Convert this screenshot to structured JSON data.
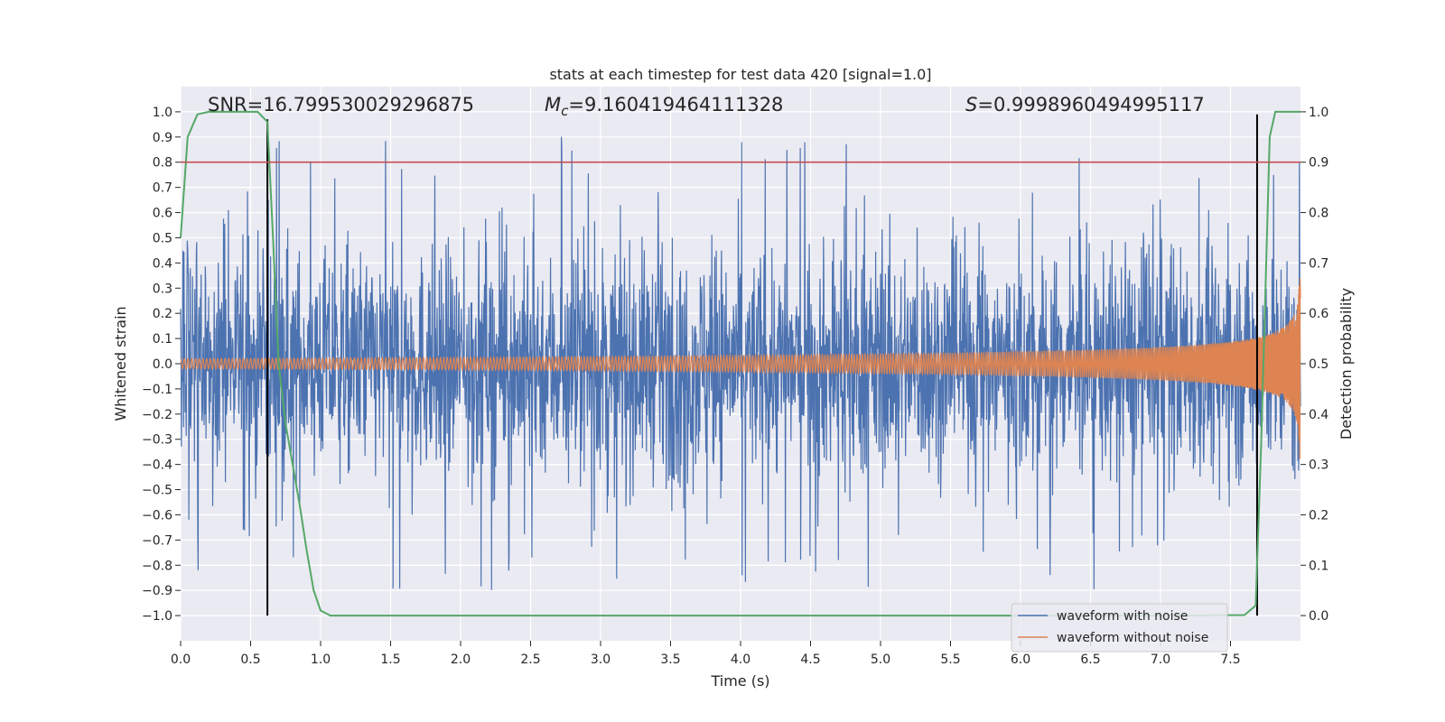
{
  "chart_data": {
    "type": "line",
    "title": "stats at each timestep for test data 420 [signal=1.0]",
    "xlabel": "Time (s)",
    "ylabel": "Whitened strain",
    "ylabel_right": "Detection probability",
    "xlim": [
      0.0,
      8.0
    ],
    "ylim": [
      -1.1,
      1.1
    ],
    "ylim_right": [
      -0.05,
      1.05
    ],
    "x_ticks": [
      "0.0",
      "0.5",
      "1.0",
      "1.5",
      "2.0",
      "2.5",
      "3.0",
      "3.5",
      "4.0",
      "4.5",
      "5.0",
      "5.5",
      "6.0",
      "6.5",
      "7.0",
      "7.5"
    ],
    "y_ticks": [
      "1.0",
      "0.9",
      "0.8",
      "0.7",
      "0.6",
      "0.5",
      "0.4",
      "0.3",
      "0.2",
      "0.1",
      "0.0",
      "−0.1",
      "−0.2",
      "−0.3",
      "−0.4",
      "−0.5",
      "−0.6",
      "−0.7",
      "−0.8",
      "−0.9",
      "−1.0"
    ],
    "y_ticks_right": [
      "1.0",
      "0.9",
      "0.8",
      "0.7",
      "0.6",
      "0.5",
      "0.4",
      "0.3",
      "0.2",
      "0.1",
      "0.0"
    ],
    "annotations": {
      "snr": "SNR=16.799530029296875",
      "mc_symbol": "M",
      "mc_subscript": "c",
      "mc_value": "=9.160419464111328",
      "s_symbol": "S",
      "s_value": "=0.9998960494995117"
    },
    "series": [
      {
        "name": "waveform with noise",
        "color": "#4c72b0",
        "axis": "left",
        "kind": "noise",
        "amplitude_typical": 0.45,
        "peak_max": 0.93
      },
      {
        "name": "waveform without noise",
        "color": "#dd8452",
        "axis": "left",
        "kind": "chirp",
        "start_amplitude": 0.02,
        "end_amplitude": 0.38,
        "merger_time": 8.0
      },
      {
        "name": "detection probability",
        "color": "#55a868",
        "axis": "right",
        "x": [
          0.0,
          0.05,
          0.12,
          0.2,
          0.3,
          0.45,
          0.55,
          0.62,
          0.66,
          0.7,
          0.75,
          0.8,
          0.85,
          0.9,
          0.95,
          1.0,
          1.07,
          1.2,
          2.0,
          3.0,
          4.0,
          5.0,
          6.0,
          7.0,
          7.6,
          7.68,
          7.72,
          7.78,
          7.82,
          7.9,
          8.0
        ],
        "y": [
          0.75,
          0.95,
          0.995,
          1.0,
          1.0,
          1.0,
          1.0,
          0.98,
          0.75,
          0.5,
          0.38,
          0.3,
          0.22,
          0.13,
          0.05,
          0.01,
          0.0,
          0.0,
          0.0,
          0.0,
          0.0,
          0.0,
          0.0,
          0.0,
          0.001,
          0.02,
          0.35,
          0.95,
          1.0,
          1.0,
          1.0
        ]
      },
      {
        "name": "threshold",
        "color": "#c44e52",
        "axis": "right",
        "y_constant": 0.9
      }
    ],
    "markers": [
      {
        "name": "first detection",
        "x": 0.62,
        "y_from": -1.0,
        "y_to": 0.97,
        "color": "#000000"
      },
      {
        "name": "second detection",
        "x": 7.69,
        "y_from": -1.0,
        "y_to": 0.99,
        "color": "#000000"
      }
    ],
    "legend": {
      "placement": "lower-right",
      "entries": [
        "waveform with noise",
        "waveform without noise"
      ]
    },
    "grid": true
  }
}
